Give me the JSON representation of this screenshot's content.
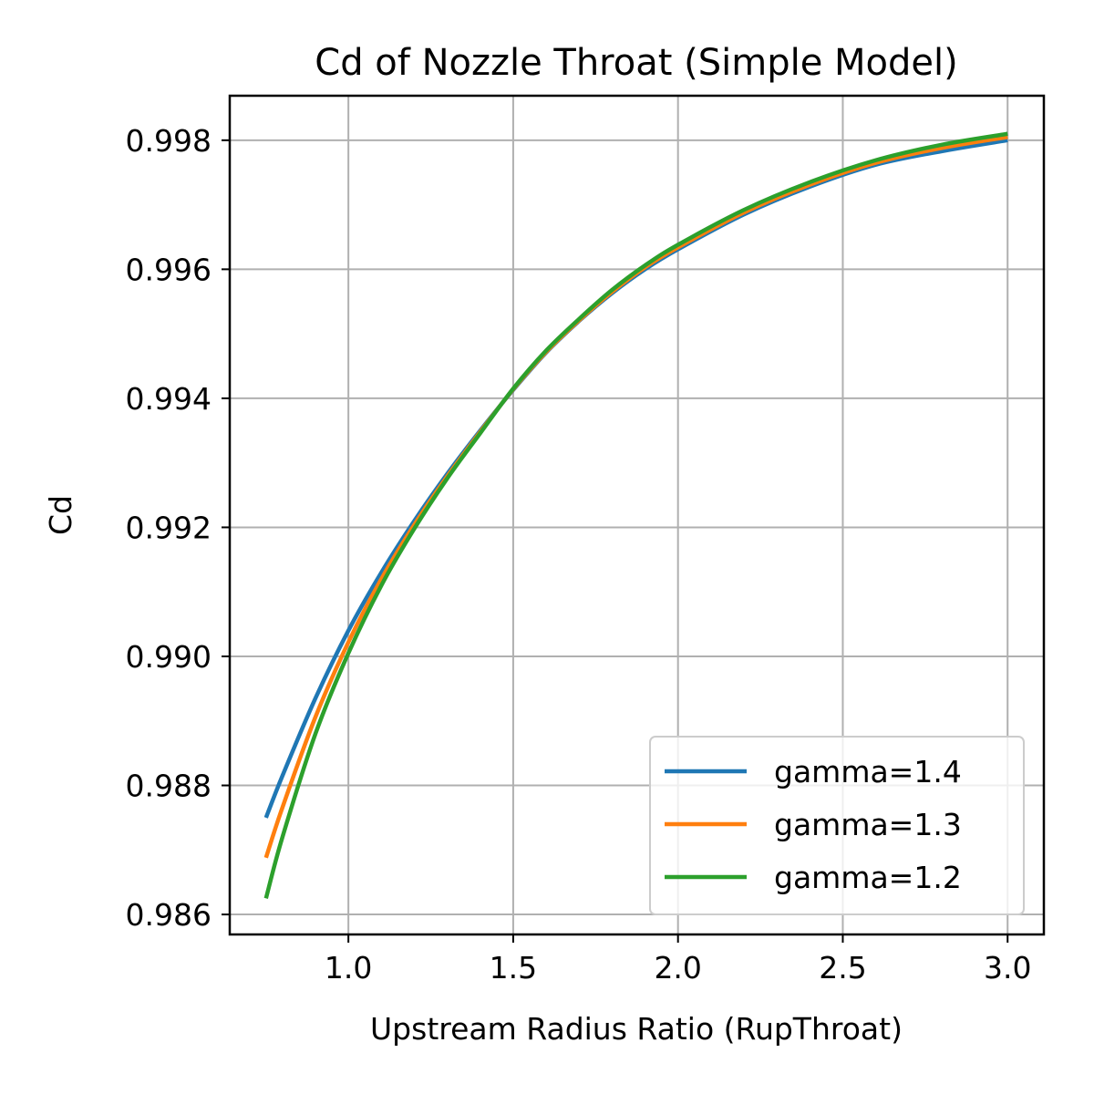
{
  "chart_data": {
    "type": "line",
    "title": "Cd of Nozzle Throat (Simple Model)",
    "xlabel": "Upstream Radius Ratio (RupThroat)",
    "ylabel": "Cd",
    "xlim": [
      0.64,
      3.11
    ],
    "ylim": [
      0.98569,
      0.99869
    ],
    "xticks": [
      1.0,
      1.5,
      2.0,
      2.5,
      3.0
    ],
    "xtick_labels": [
      "1.0",
      "1.5",
      "2.0",
      "2.5",
      "3.0"
    ],
    "yticks": [
      0.986,
      0.988,
      0.99,
      0.992,
      0.994,
      0.996,
      0.998
    ],
    "ytick_labels": [
      "0.986",
      "0.988",
      "0.990",
      "0.992",
      "0.994",
      "0.996",
      "0.998"
    ],
    "grid": true,
    "legend": "lower-right",
    "x": [
      0.75,
      0.8,
      0.9,
      1.0,
      1.1,
      1.2,
      1.3,
      1.4,
      1.5,
      1.6,
      1.7,
      1.8,
      1.9,
      2.0,
      2.2,
      2.4,
      2.6,
      2.8,
      3.0
    ],
    "series": [
      {
        "name": "gamma=1.4",
        "color": "#1f77b4",
        "values": [
          0.9875,
          0.98815,
          0.98935,
          0.9904,
          0.9913,
          0.9921,
          0.99283,
          0.9935,
          0.99413,
          0.99471,
          0.9952,
          0.99563,
          0.996,
          0.99631,
          0.99685,
          0.99728,
          0.99762,
          0.99783,
          0.998
        ]
      },
      {
        "name": "gamma=1.3",
        "color": "#ff7f0e",
        "values": [
          0.98688,
          0.98766,
          0.98906,
          0.99022,
          0.9912,
          0.99204,
          0.99279,
          0.99348,
          0.99414,
          0.99472,
          0.99521,
          0.99565,
          0.99603,
          0.99634,
          0.99688,
          0.99731,
          0.99765,
          0.99788,
          0.99805
        ]
      },
      {
        "name": "gamma=1.2",
        "color": "#2ca02c",
        "values": [
          0.98625,
          0.9872,
          0.9888,
          0.99005,
          0.9911,
          0.99198,
          0.99276,
          0.99346,
          0.99415,
          0.99474,
          0.99523,
          0.99568,
          0.99606,
          0.99638,
          0.99692,
          0.99735,
          0.99769,
          0.99793,
          0.9981
        ]
      }
    ]
  }
}
